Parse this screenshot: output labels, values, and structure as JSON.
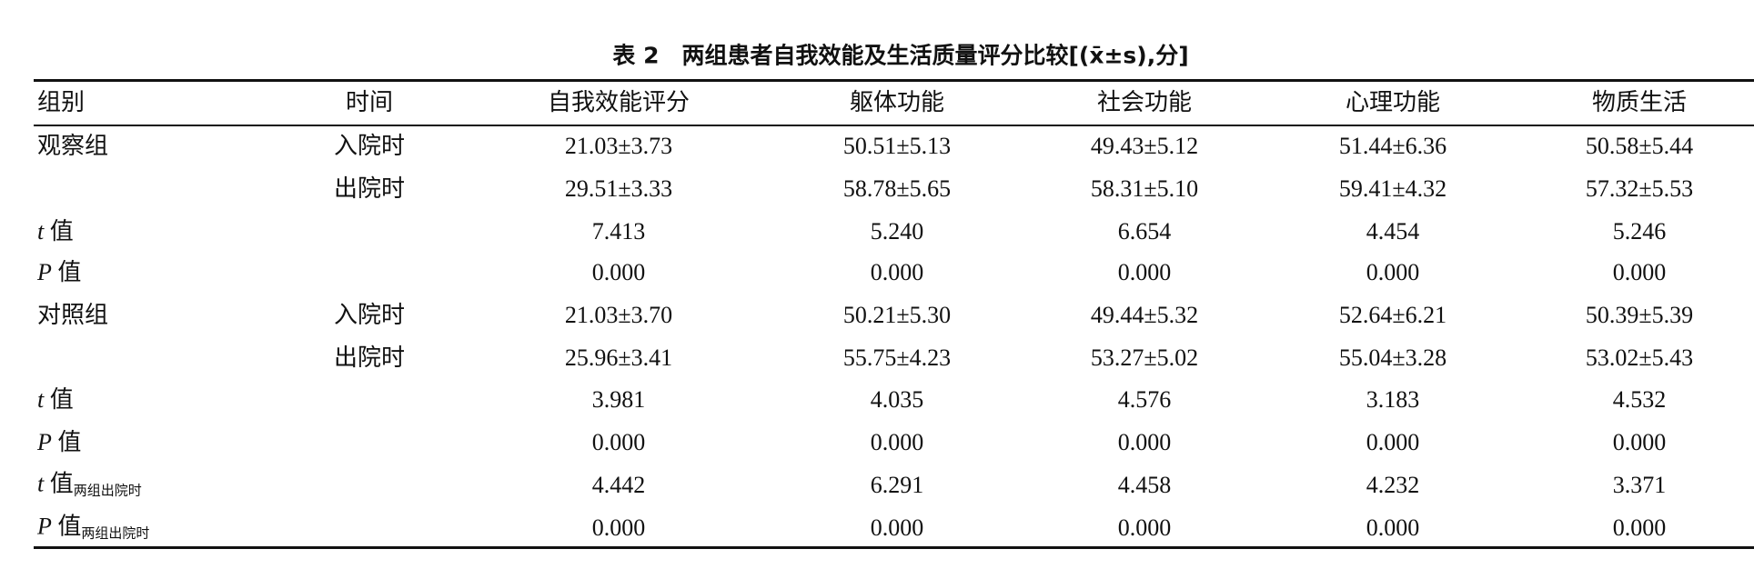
{
  "title": "表 2　两组患者自我效能及生活质量评分比较[(x̄±s),分]",
  "table": {
    "header": [
      "组别",
      "时间",
      "自我效能评分",
      "躯体功能",
      "社会功能",
      "心理功能",
      "物质生活"
    ],
    "rows": [
      {
        "group": "观察组",
        "time": "入院时",
        "cells": [
          "21.03±3.73",
          "50.51±5.13",
          "49.43±5.12",
          "51.44±6.36",
          "50.58±5.44"
        ]
      },
      {
        "time": "出院时",
        "cells": [
          "29.51±3.33",
          "58.78±5.65",
          "58.31±5.10",
          "59.41±4.32",
          "57.32±5.53"
        ]
      },
      {
        "label": {
          "var": "t",
          "text": "值"
        },
        "cells": [
          "7.413",
          "5.240",
          "6.654",
          "4.454",
          "5.246"
        ]
      },
      {
        "label": {
          "var": "P",
          "text": "值"
        },
        "cells": [
          "0.000",
          "0.000",
          "0.000",
          "0.000",
          "0.000"
        ]
      },
      {
        "group": "对照组",
        "time": "入院时",
        "cells": [
          "21.03±3.70",
          "50.21±5.30",
          "49.44±5.32",
          "52.64±6.21",
          "50.39±5.39"
        ]
      },
      {
        "time": "出院时",
        "cells": [
          "25.96±3.41",
          "55.75±4.23",
          "53.27±5.02",
          "55.04±3.28",
          "53.02±5.43"
        ]
      },
      {
        "label": {
          "var": "t",
          "text": "值"
        },
        "cells": [
          "3.981",
          "4.035",
          "4.576",
          "3.183",
          "4.532"
        ]
      },
      {
        "label": {
          "var": "P",
          "text": "值"
        },
        "cells": [
          "0.000",
          "0.000",
          "0.000",
          "0.000",
          "0.000"
        ]
      },
      {
        "label": {
          "var": "t",
          "text": "值",
          "sub": "两组出院时"
        },
        "cells": [
          "4.442",
          "6.291",
          "4.458",
          "4.232",
          "3.371"
        ]
      },
      {
        "label": {
          "var": "P",
          "text": "值",
          "sub": "两组出院时"
        },
        "cells": [
          "0.000",
          "0.000",
          "0.000",
          "0.000",
          "0.000"
        ]
      }
    ]
  }
}
